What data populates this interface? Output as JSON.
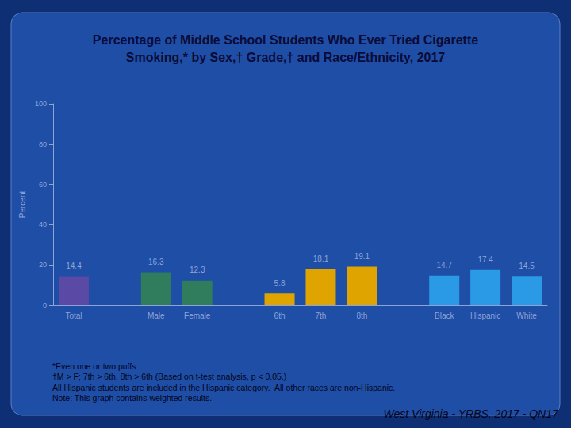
{
  "chart_data": {
    "type": "bar",
    "title": "Percentage of Middle School Students Who Ever Tried Cigarette\nSmoking,* by Sex,† Grade,† and Race/Ethnicity, 2017",
    "y_label": "Percent",
    "categories": [
      "Total",
      null,
      "Male",
      "Female",
      null,
      "6th",
      "7th",
      "8th",
      null,
      "Black",
      "Hispanic",
      "White"
    ],
    "values": [
      14.4,
      null,
      16.3,
      12.3,
      null,
      5.8,
      18.1,
      19.1,
      null,
      14.7,
      17.4,
      14.5
    ],
    "colors": [
      "#5a4aa6",
      null,
      "#2f7d5c",
      "#2f7d5c",
      null,
      "#e0a400",
      "#e0a400",
      "#e0a400",
      null,
      "#2b9ae6",
      "#2b9ae6",
      "#2b9ae6"
    ],
    "ylim": [
      0,
      100
    ],
    "yticks": [
      0,
      20,
      40,
      60,
      80,
      100
    ],
    "grid": false,
    "data_labels": true,
    "notes": [
      "*Even one or two puffs",
      "†M > F; 7th > 6th, 8th > 6th (Based on t-test analysis, p < 0.05.)",
      "All Hispanic students are included in the Hispanic category.  All other races are non-Hispanic.",
      "Note: This graph contains weighted results."
    ],
    "source": "West Virginia - YRBS, 2017 - QN17"
  }
}
